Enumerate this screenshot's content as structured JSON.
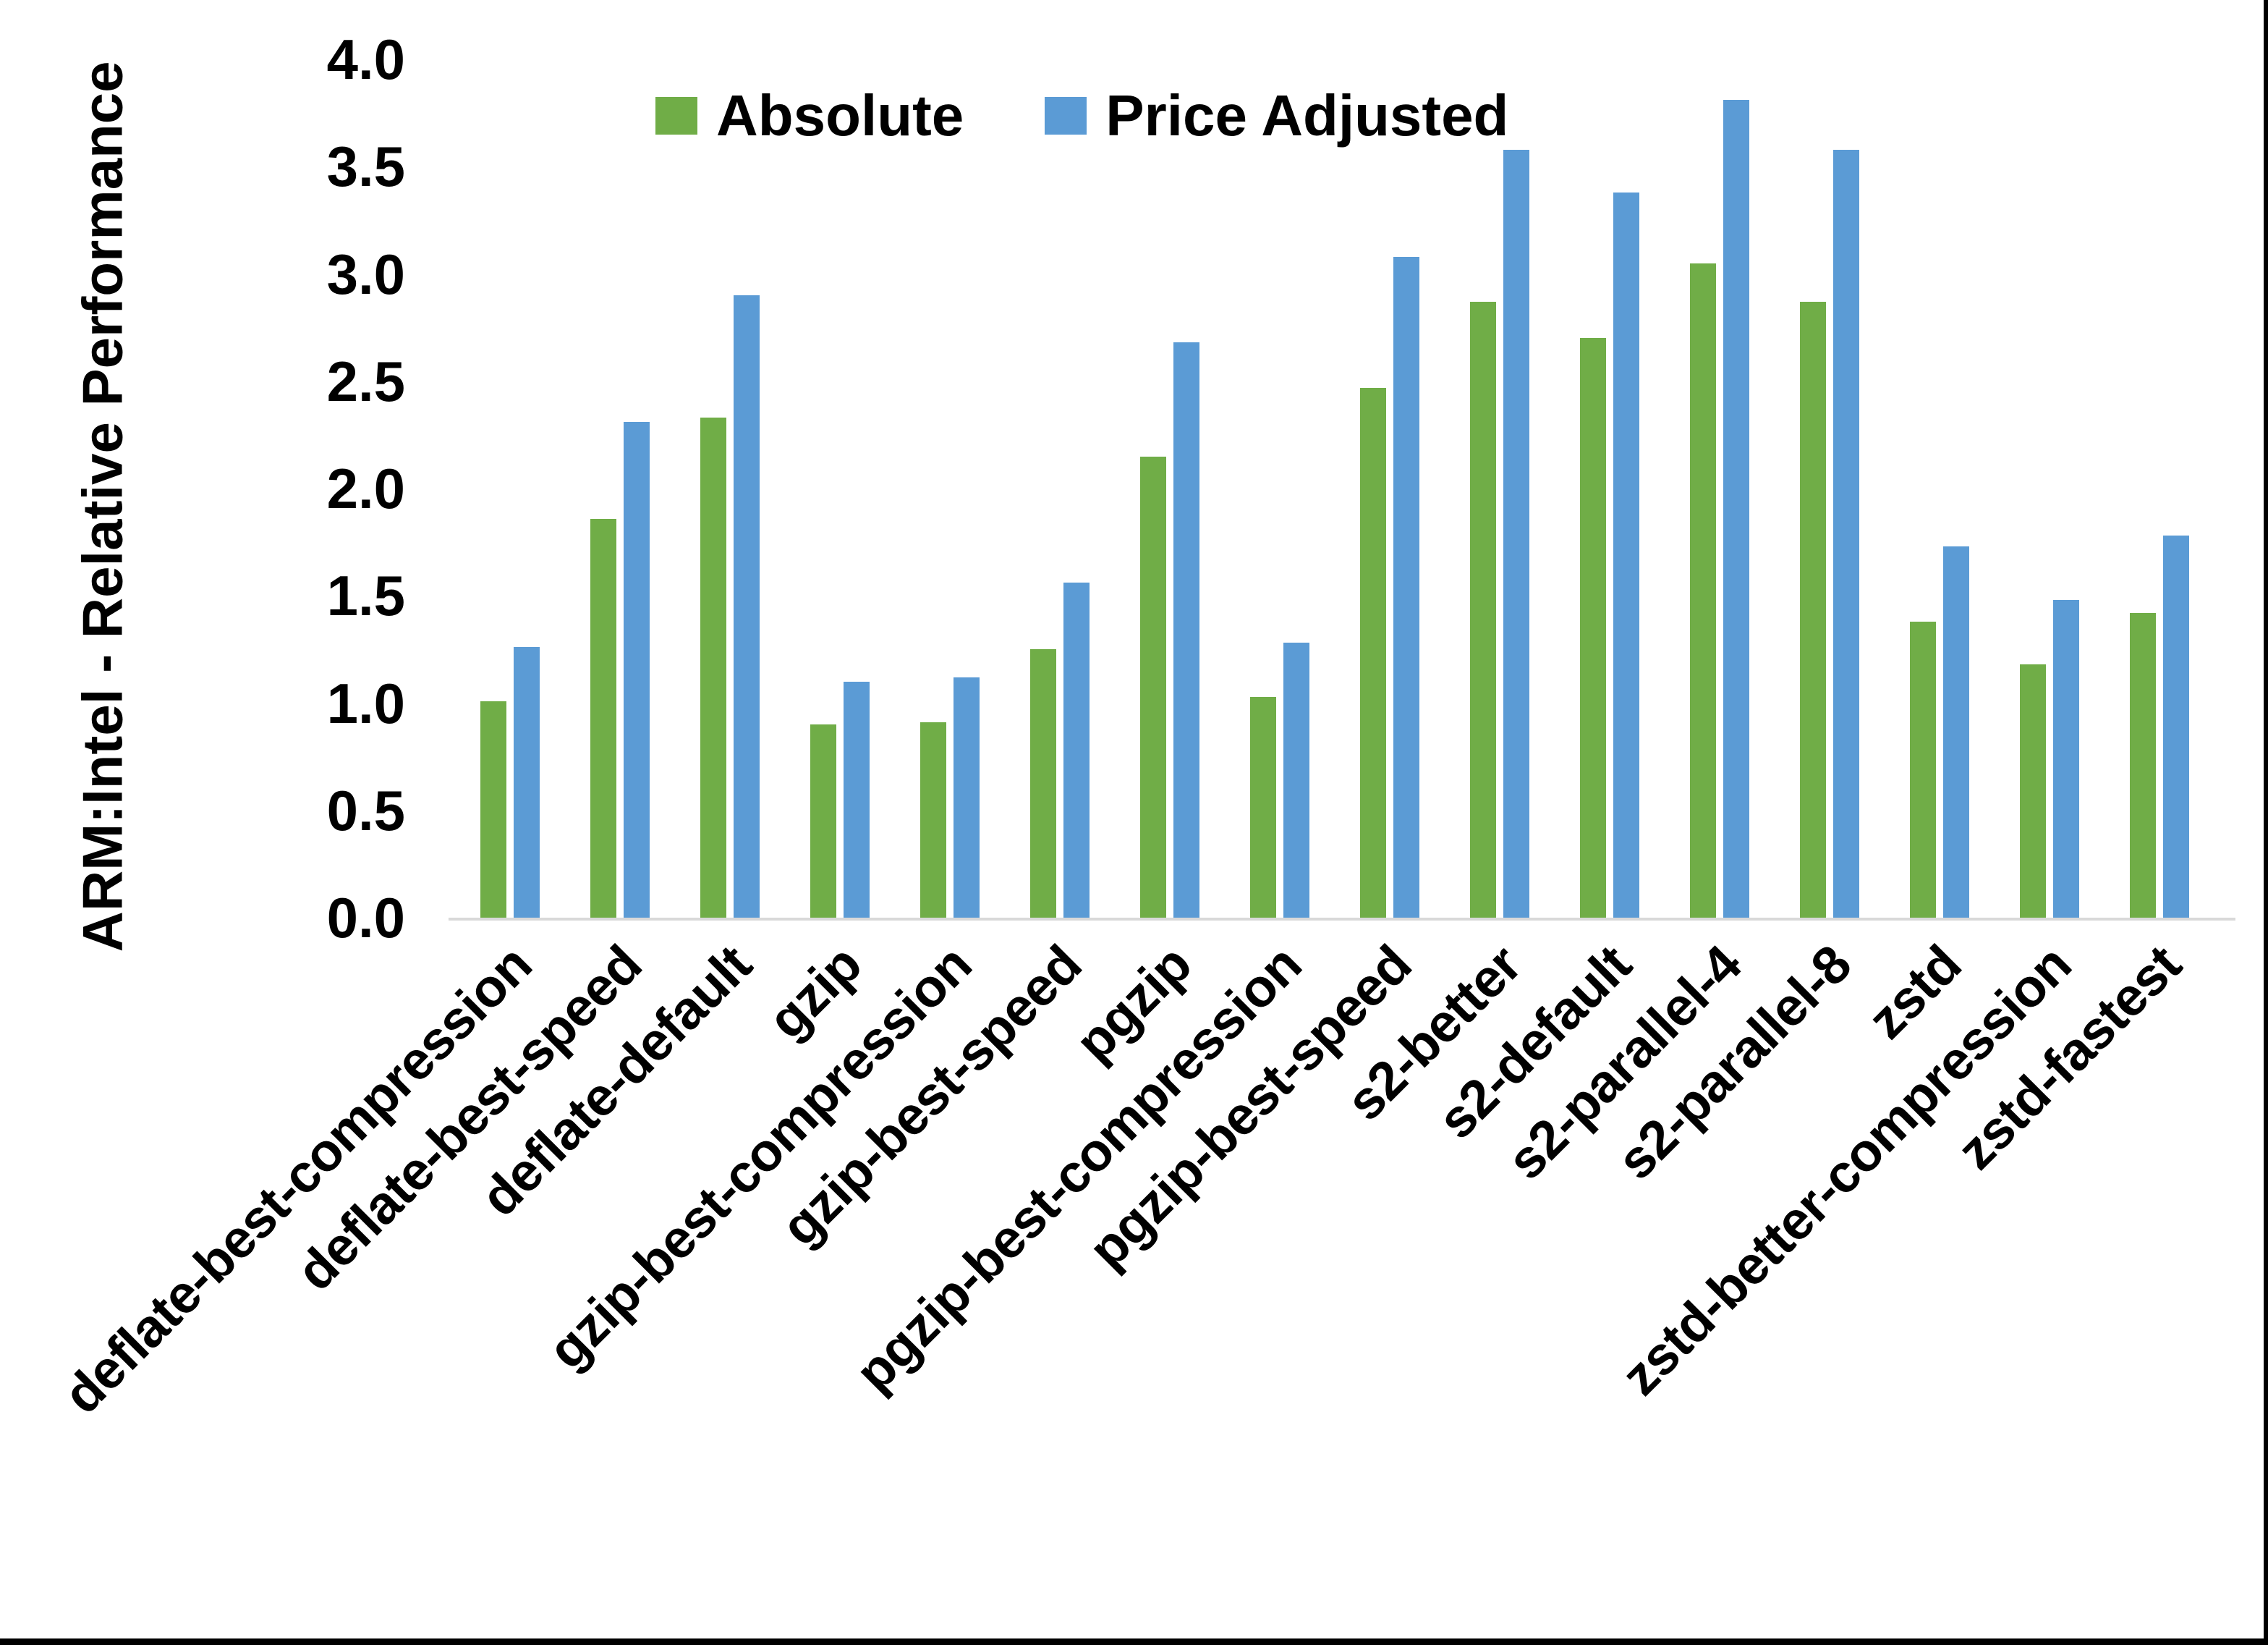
{
  "chart_data": {
    "type": "bar",
    "title": "",
    "xlabel": "",
    "ylabel": "ARM:Intel - Relative Performance",
    "ylim": [
      0.0,
      4.0
    ],
    "ytick_step": 0.5,
    "ytick_labels": [
      "0.0",
      "0.5",
      "1.0",
      "1.5",
      "2.0",
      "2.5",
      "3.0",
      "3.5",
      "4.0"
    ],
    "grid": false,
    "legend_position": "top-center",
    "categories": [
      "deflate-best-compression",
      "deflate-best-speed",
      "deflate-default",
      "gzip",
      "gzip-best-compression",
      "gzip-best-speed",
      "pgzip",
      "pgzip-best-compression",
      "pgzip-best-speed",
      "s2-better",
      "s2-default",
      "s2-parallel-4",
      "s2-parallel-8",
      "zstd",
      "zstd-better-compression",
      "zstd-fastest"
    ],
    "series": [
      {
        "name": "Absolute",
        "color": "#70AD47",
        "values": [
          1.01,
          1.86,
          2.33,
          0.9,
          0.91,
          1.25,
          2.15,
          1.03,
          2.47,
          2.87,
          2.7,
          3.05,
          2.87,
          1.38,
          1.18,
          1.42
        ]
      },
      {
        "name": "Price Adjusted",
        "color": "#5B9BD5",
        "values": [
          1.26,
          2.31,
          2.9,
          1.1,
          1.12,
          1.56,
          2.68,
          1.28,
          3.08,
          3.58,
          3.38,
          3.81,
          3.58,
          1.73,
          1.48,
          1.78
        ]
      }
    ],
    "axis_line_color": "#D9D9D9",
    "text_color": "#000000"
  }
}
